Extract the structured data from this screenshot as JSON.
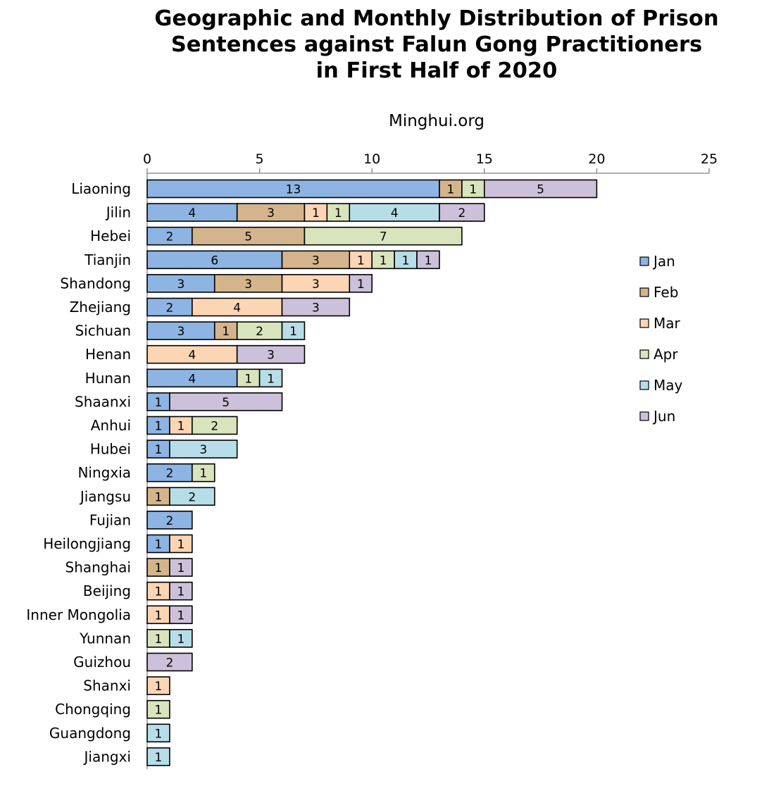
{
  "chart_data": {
    "type": "bar",
    "orientation": "horizontal",
    "stacked": true,
    "title_lines": [
      "Geographic and Monthly Distribution of Prison",
      "Sentences against Falun Gong Practitioners",
      "in First Half of 2020"
    ],
    "subtitle": "Minghui.org",
    "xlim": [
      0,
      25
    ],
    "xticks": [
      0,
      5,
      10,
      15,
      20,
      25
    ],
    "xaxis_position": "top",
    "grid": false,
    "legend_position": "right",
    "categories": [
      "Liaoning",
      "Jilin",
      "Hebei",
      "Tianjin",
      "Shandong",
      "Zhejiang",
      "Sichuan",
      "Henan",
      "Hunan",
      "Shaanxi",
      "Anhui",
      "Hubei",
      "Ningxia",
      "Jiangsu",
      "Fujian",
      "Heilongjiang",
      "Shanghai",
      "Beijing",
      "Inner Mongolia",
      "Yunnan",
      "Guizhou",
      "Shanxi",
      "Chongqing",
      "Guangdong",
      "Jiangxi"
    ],
    "series": [
      {
        "name": "Jan",
        "color": "#8db4e2",
        "values": [
          13,
          4,
          2,
          6,
          3,
          2,
          3,
          0,
          4,
          1,
          1,
          1,
          2,
          0,
          2,
          1,
          0,
          0,
          0,
          0,
          0,
          0,
          0,
          0,
          0
        ]
      },
      {
        "name": "Feb",
        "color": "#d3b48c",
        "values": [
          1,
          3,
          5,
          3,
          3,
          0,
          1,
          0,
          0,
          0,
          0,
          0,
          0,
          1,
          0,
          0,
          1,
          0,
          0,
          0,
          0,
          0,
          0,
          0,
          0
        ]
      },
      {
        "name": "Mar",
        "color": "#fcd5b4",
        "values": [
          0,
          1,
          0,
          1,
          3,
          4,
          0,
          4,
          0,
          0,
          1,
          0,
          0,
          0,
          0,
          1,
          0,
          1,
          1,
          0,
          0,
          1,
          0,
          0,
          0
        ]
      },
      {
        "name": "Apr",
        "color": "#d8e4bc",
        "values": [
          1,
          1,
          7,
          1,
          0,
          0,
          2,
          0,
          1,
          0,
          2,
          0,
          1,
          0,
          0,
          0,
          0,
          0,
          0,
          1,
          0,
          0,
          1,
          0,
          0
        ]
      },
      {
        "name": "May",
        "color": "#b7dde8",
        "values": [
          0,
          4,
          0,
          1,
          0,
          0,
          1,
          0,
          1,
          0,
          0,
          3,
          0,
          2,
          0,
          0,
          0,
          0,
          0,
          1,
          0,
          0,
          0,
          1,
          1
        ]
      },
      {
        "name": "Jun",
        "color": "#ccc0da",
        "values": [
          5,
          2,
          0,
          1,
          1,
          3,
          0,
          3,
          0,
          5,
          0,
          0,
          0,
          0,
          0,
          0,
          1,
          1,
          1,
          0,
          2,
          0,
          0,
          0,
          0
        ]
      }
    ]
  }
}
